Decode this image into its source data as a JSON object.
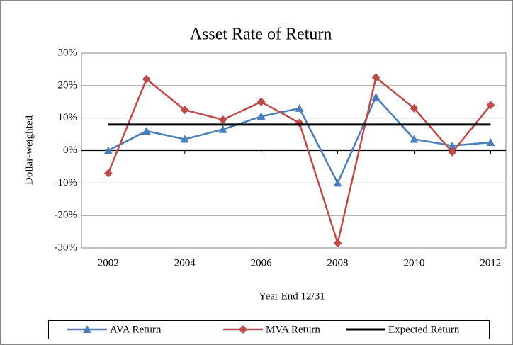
{
  "chart_data": {
    "type": "line",
    "title": "Asset Rate of Return",
    "x_label": "Year End 12/31",
    "y_label": "Dollar-weighted",
    "x": [
      2002,
      2003,
      2004,
      2005,
      2006,
      2007,
      2008,
      2009,
      2010,
      2011,
      2012
    ],
    "series": [
      {
        "name": "AVA Return",
        "color": "#4a7ebb",
        "marker": "triangle",
        "values": [
          0,
          6,
          3.5,
          6.5,
          10.5,
          13,
          -10,
          16.5,
          3.5,
          1.5,
          2.5
        ]
      },
      {
        "name": "MVA Return",
        "color": "#be4b48",
        "marker": "diamond",
        "values": [
          -7,
          22,
          12.5,
          9.5,
          15,
          8.5,
          -28.5,
          22.5,
          13,
          -0.5,
          14
        ]
      },
      {
        "name": "Expected Return",
        "color": "#000000",
        "marker": "none",
        "values": [
          8,
          8,
          8,
          8,
          8,
          8,
          8,
          8,
          8,
          8,
          8
        ]
      }
    ],
    "xlim": [
      2001.3,
      2012.4
    ],
    "xticks": [
      2002,
      2004,
      2006,
      2008,
      2010,
      2012
    ],
    "ylim": [
      -30,
      30
    ],
    "yticks": [
      {
        "value": -30,
        "label": "-30%"
      },
      {
        "value": -20,
        "label": "-20%"
      },
      {
        "value": -10,
        "label": "-10%"
      },
      {
        "value": 0,
        "label": "0%"
      },
      {
        "value": 10,
        "label": "10%"
      },
      {
        "value": 20,
        "label": "20%"
      },
      {
        "value": 30,
        "label": "30%"
      }
    ],
    "grid": true,
    "legend": "bottom"
  }
}
